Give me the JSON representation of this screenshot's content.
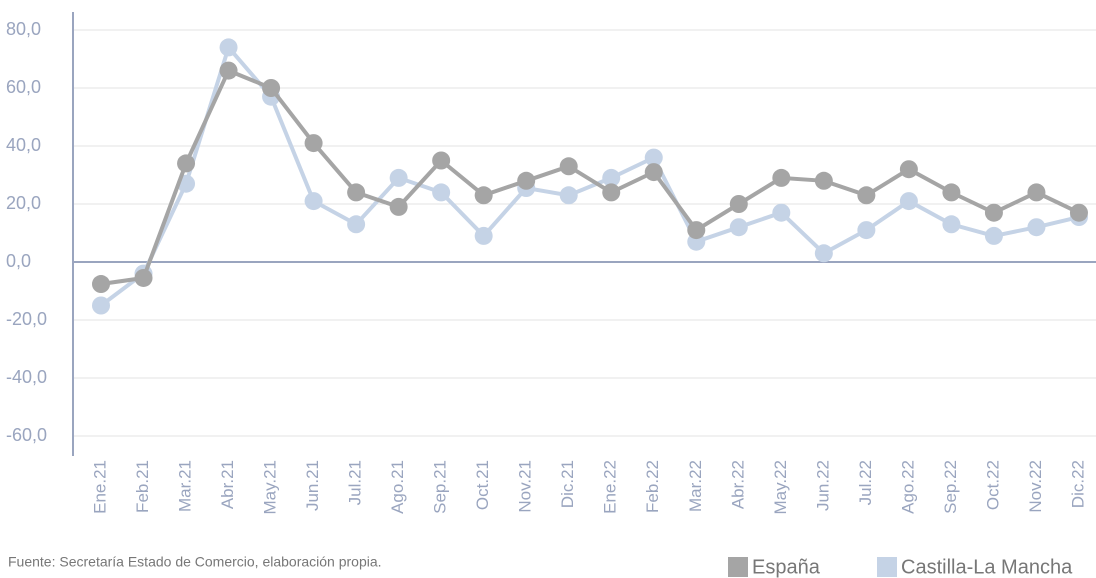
{
  "chart_data": {
    "type": "line",
    "source": "Fuente: Secretaría Estado de Comercio, elaboración propia.",
    "categories": [
      "Ene.21",
      "Feb.21",
      "Mar.21",
      "Abr.21",
      "May.21",
      "Jun.21",
      "Jul.21",
      "Ago.21",
      "Sep.21",
      "Oct.21",
      "Nov.21",
      "Dic.21",
      "Ene.22",
      "Feb.22",
      "Mar.22",
      "Abr.22",
      "May.22",
      "Jun.22",
      "Jul.22",
      "Ago.22",
      "Sep.22",
      "Oct.22",
      "Nov.22",
      "Dic.22"
    ],
    "series": [
      {
        "name": "España",
        "color": "#a5a5a5",
        "values": [
          -7.6,
          -5.5,
          34,
          66,
          60,
          41,
          24,
          19,
          35,
          23,
          28,
          33,
          24,
          31,
          11,
          20,
          29,
          28,
          23,
          32,
          24,
          17,
          24,
          17
        ]
      },
      {
        "name": "Castilla-La Mancha",
        "color": "#c5d3e6",
        "values": [
          -15,
          -4,
          27,
          74,
          57,
          21,
          13,
          29,
          24,
          9,
          25.5,
          23,
          29,
          36,
          7,
          12,
          17,
          3,
          11,
          21,
          13,
          9,
          12,
          15.5
        ]
      }
    ],
    "ylim": [
      -60,
      80
    ],
    "yticks": [
      {
        "value": -60,
        "label": "-60,0"
      },
      {
        "value": -40,
        "label": "-40,0"
      },
      {
        "value": -20,
        "label": "-20,0"
      },
      {
        "value": 0,
        "label": "0,0"
      },
      {
        "value": 20,
        "label": "20,0"
      },
      {
        "value": 40,
        "label": "40,0"
      },
      {
        "value": 60,
        "label": "60,0"
      },
      {
        "value": 80,
        "label": "80,0"
      }
    ],
    "grid": true
  }
}
